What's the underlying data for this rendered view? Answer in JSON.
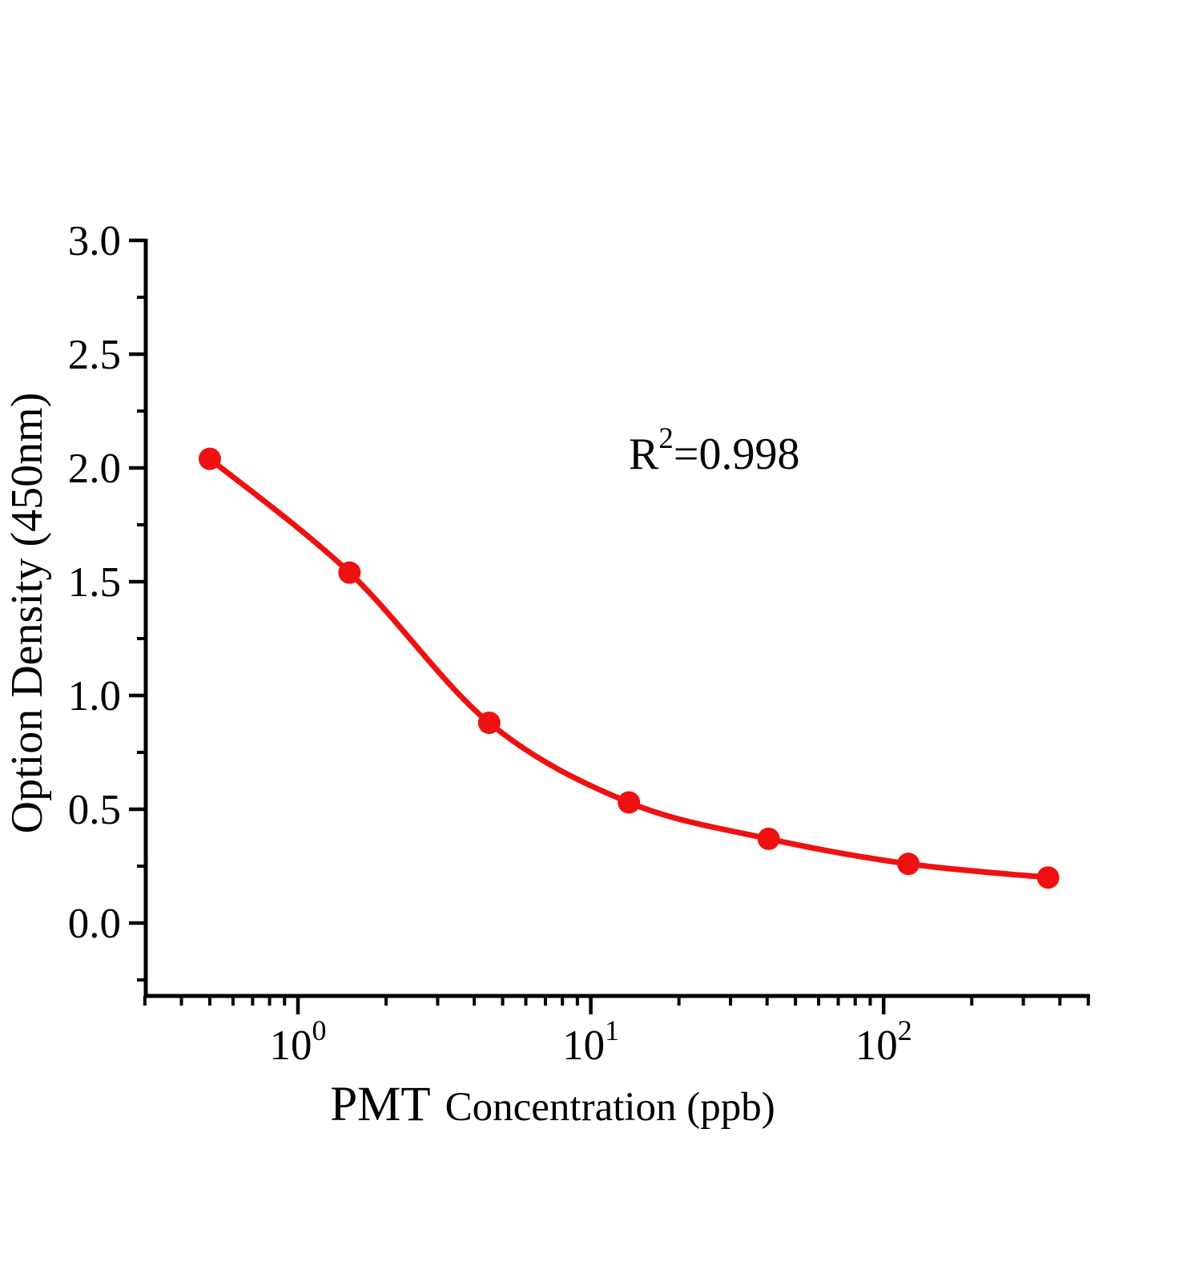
{
  "page": {
    "background": "#ffffff"
  },
  "chart": {
    "axis_color": "#000000",
    "series_color": "#ee1111",
    "y_axis": {
      "title": "Option Density（450nm）",
      "tick_labels": [
        "0.0",
        "0.5",
        "1.0",
        "1.5",
        "2.0",
        "2.5",
        "3.0"
      ],
      "major_tick_values": [
        0,
        0.5,
        1,
        1.5,
        2,
        2.5,
        3
      ],
      "minor_tick_values": [
        -0.25,
        0.25,
        0.75,
        1.25,
        1.75,
        2.25,
        2.75
      ],
      "range_top": 3.0,
      "range_bottom_label": "0.0"
    },
    "x_axis": {
      "title": "PMT Concentration（ppb）",
      "title_parts": {
        "primary": "PMT",
        "secondary": "Concentration（ppb）"
      },
      "scale": "log10",
      "range": [
        0.3,
        500
      ],
      "major_ticks": [
        {
          "value": 1,
          "base": "10",
          "exponent": "0"
        },
        {
          "value": 10,
          "base": "10",
          "exponent": "1"
        },
        {
          "value": 100,
          "base": "10",
          "exponent": "2"
        }
      ],
      "minor_tick_values": [
        0.3,
        0.4,
        0.5,
        0.6,
        0.7,
        0.8,
        0.9,
        2,
        3,
        4,
        5,
        6,
        7,
        8,
        9,
        20,
        30,
        40,
        50,
        60,
        70,
        80,
        90,
        200,
        300,
        400,
        500
      ]
    },
    "annotation": {
      "base": "R",
      "superscript": "2",
      "rest": "=0.998"
    }
  },
  "chart_data": {
    "type": "scatter",
    "x": [
      0.5,
      1.5,
      4.5,
      13.5,
      40.5,
      121.5,
      364.5
    ],
    "y": [
      2.04,
      1.54,
      0.88,
      0.53,
      0.37,
      0.26,
      0.2
    ],
    "xlabel": "PMT Concentration（ppb）",
    "ylabel": "Option Density（450nm）",
    "x_scale": "log10",
    "xlim": [
      0.3,
      500
    ],
    "ylim": [
      0.0,
      3.0
    ],
    "y_major_step": 0.5,
    "y_minor_step": 0.25,
    "annotation": "R²=0.998",
    "legend": "none",
    "grid": "off",
    "marker_color": "#ee1111",
    "line_color": "#ee1111",
    "curve": "smooth-fit-through-points"
  }
}
